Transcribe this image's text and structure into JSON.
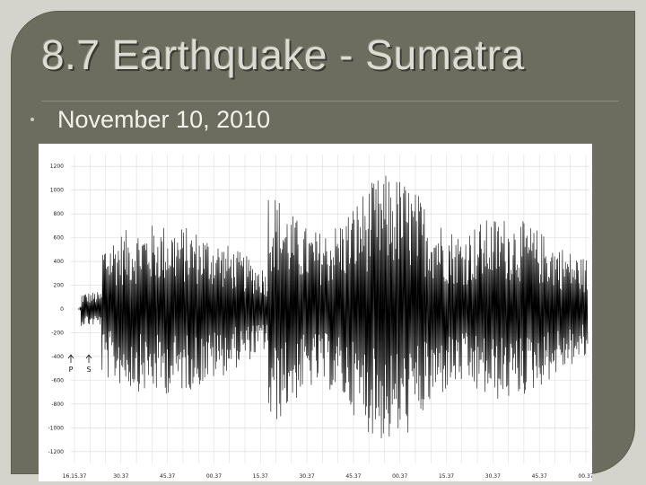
{
  "slide": {
    "title": "8.7 Earthquake - Sumatra",
    "bullet_text": "November 10, 2010"
  },
  "seismogram": {
    "y_ticks": [
      "1200",
      "1000",
      "800",
      "600",
      "400",
      "200",
      "0",
      "-200",
      "-400",
      "-600",
      "-800",
      "-1000",
      "-1200"
    ],
    "y_tick_values": [
      1200,
      1000,
      800,
      600,
      400,
      200,
      0,
      -200,
      -400,
      -600,
      -800,
      -1000,
      -1200
    ],
    "x_ticks": [
      "16.15.37",
      "30.37",
      "45.37",
      "00.37",
      "15.37",
      "30.37",
      "45.37",
      "00.37",
      "15.37",
      "30.37",
      "45.37",
      "00.37"
    ],
    "phase_markers": [
      {
        "label": "P"
      },
      {
        "label": "S"
      }
    ],
    "colors": {
      "trace": "#000000",
      "grid": "#d8d8d8",
      "background": "#ffffff"
    }
  }
}
